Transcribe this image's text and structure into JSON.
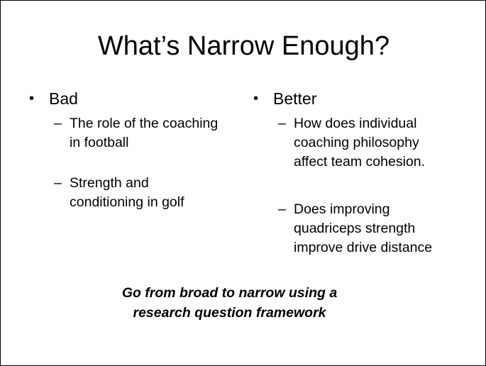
{
  "slide": {
    "title": "What’s Narrow Enough?",
    "left": {
      "bullet": "Bad",
      "items": [
        {
          "lines": [
            "The role of the coaching",
            "in football"
          ]
        },
        {
          "lines": [
            "Strength and",
            "conditioning in golf"
          ]
        }
      ]
    },
    "right": {
      "bullet": "Better",
      "items": [
        {
          "lines": [
            "How does individual",
            "coaching philosophy",
            "affect team cohesion."
          ]
        },
        {
          "lines": [
            "Does improving",
            "quadriceps strength",
            "improve drive distance"
          ]
        }
      ]
    },
    "conclusion": {
      "lines": [
        "Go from broad to narrow using a",
        "research question framework"
      ]
    }
  }
}
